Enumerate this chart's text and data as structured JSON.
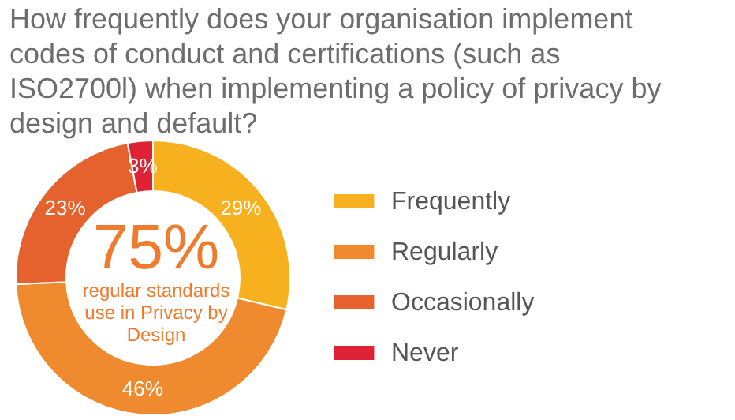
{
  "chart_data": {
    "type": "donut",
    "title": "How frequently does your organisation implement codes of conduct and certifications (such as ISO2700l) when implementing a policy of privacy by design and default?",
    "categories": [
      "Frequently",
      "Regularly",
      "Occasionally",
      "Never"
    ],
    "values": [
      29,
      46,
      23,
      3
    ],
    "colors": [
      "#f7b11e",
      "#ef8a2e",
      "#e5622f",
      "#df2234"
    ],
    "value_labels": [
      "29%",
      "46%",
      "23%",
      "3%"
    ],
    "annotations": [
      "75%",
      "regular standards use in Privacy by Design"
    ],
    "legend": "right"
  }
}
